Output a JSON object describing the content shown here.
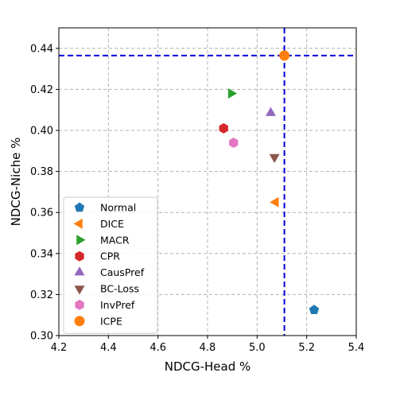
{
  "chart_data": {
    "type": "scatter",
    "xlabel": "NDCG-Head %",
    "ylabel": "NDCG-Niche %",
    "xlim": [
      4.2,
      5.4
    ],
    "ylim": [
      0.3,
      0.45
    ],
    "x_ticks": [
      "4.2",
      "4.4",
      "4.6",
      "4.8",
      "5.0",
      "5.2",
      "5.4"
    ],
    "y_ticks": [
      "0.30",
      "0.32",
      "0.34",
      "0.36",
      "0.38",
      "0.40",
      "0.42",
      "0.44"
    ],
    "grid": true,
    "legend_position": "lower-left",
    "reference_lines": {
      "x": 5.11,
      "y": 0.4365,
      "color": "#0000dd",
      "style": "dashed"
    },
    "series": [
      {
        "name": "Normal",
        "marker": "pentagon",
        "color": "#1f77b4",
        "x": 5.23,
        "y": 0.3125
      },
      {
        "name": "DICE",
        "marker": "triangle-left",
        "color": "#ff7f0e",
        "x": 5.075,
        "y": 0.365
      },
      {
        "name": "MACR",
        "marker": "triangle-right",
        "color": "#2ca02c",
        "x": 4.895,
        "y": 0.418
      },
      {
        "name": "CPR",
        "marker": "hexagon",
        "color": "#d62728",
        "x": 4.865,
        "y": 0.401
      },
      {
        "name": "CausPref",
        "marker": "triangle-up",
        "color": "#9467bd",
        "x": 5.055,
        "y": 0.4085
      },
      {
        "name": "BC-Loss",
        "marker": "triangle-down",
        "color": "#8c564b",
        "x": 5.07,
        "y": 0.387
      },
      {
        "name": "InvPref",
        "marker": "hexagon",
        "color": "#e377c2",
        "x": 4.905,
        "y": 0.394
      },
      {
        "name": "ICPE",
        "marker": "circle",
        "color": "#ff7f0e",
        "x": 5.11,
        "y": 0.4365
      }
    ]
  }
}
